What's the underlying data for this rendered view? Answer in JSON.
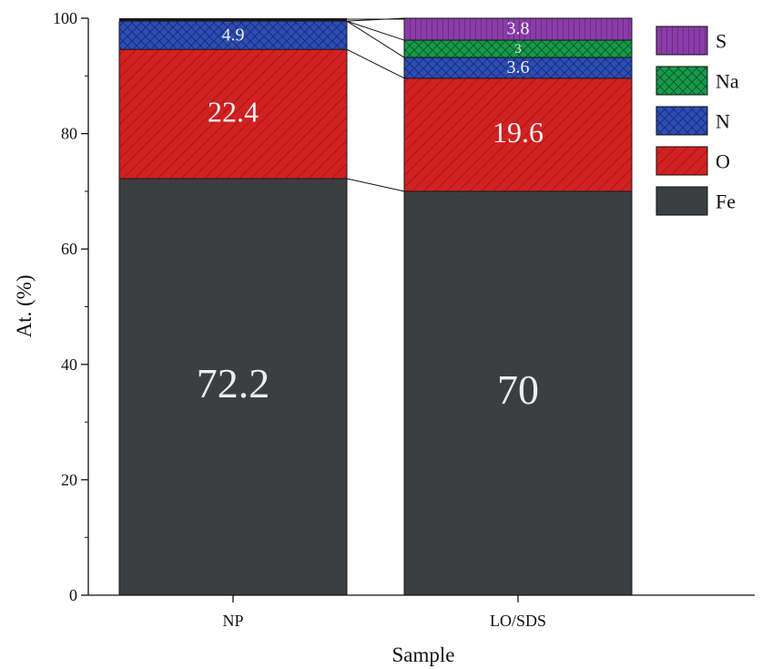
{
  "chart_data": {
    "type": "bar",
    "stacked": true,
    "title": "",
    "xlabel": "Sample",
    "ylabel": "At. (%)",
    "ylim": [
      0,
      100
    ],
    "yticks": [
      0,
      20,
      40,
      60,
      80,
      100
    ],
    "categories": [
      "NP",
      "LO/SDS"
    ],
    "series": [
      {
        "name": "Fe",
        "values": [
          72.2,
          70
        ],
        "labels": [
          "72.2",
          "70"
        ],
        "color": "#3c3f42",
        "pattern": "none"
      },
      {
        "name": "O",
        "values": [
          22.4,
          19.6
        ],
        "labels": [
          "22.4",
          "19.6"
        ],
        "color": "#d22121",
        "pattern": "diagonal"
      },
      {
        "name": "N",
        "values": [
          4.9,
          3.6
        ],
        "labels": [
          "4.9",
          "3.6"
        ],
        "color": "#2c4db5",
        "pattern": "crosshatch"
      },
      {
        "name": "Na",
        "values": [
          0,
          3
        ],
        "labels": [
          "",
          "3"
        ],
        "color": "#159a4a",
        "pattern": "crosshatch"
      },
      {
        "name": "S",
        "values": [
          0,
          3.8
        ],
        "labels": [
          "",
          "3.8"
        ],
        "color": "#8a3ca8",
        "pattern": "vertical"
      }
    ],
    "np_top_remainder": 0.5,
    "legend_order": [
      "S",
      "Na",
      "N",
      "O",
      "Fe"
    ],
    "legend_position": "top-right",
    "grid": false,
    "connector_lines": true
  }
}
